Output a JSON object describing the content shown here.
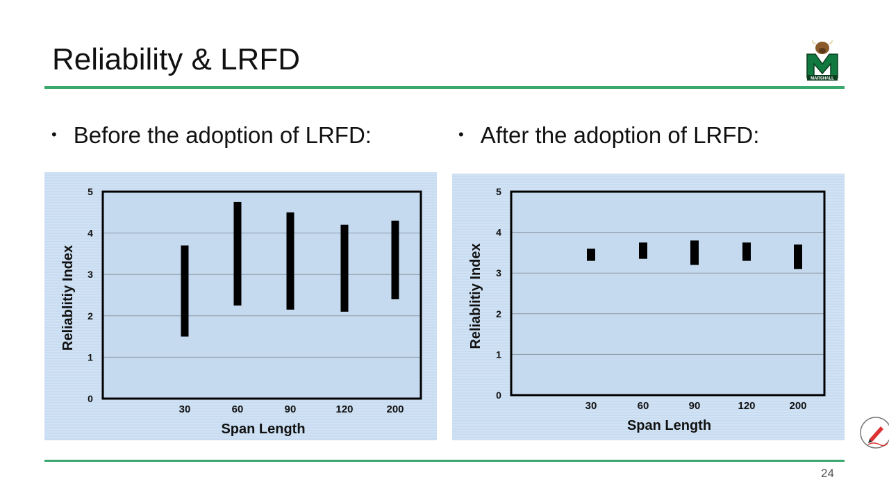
{
  "slide": {
    "title": "Reliability & LRFD",
    "page_number": "24",
    "logo_text": "MARSHALL",
    "accent_color": "#3aa76d"
  },
  "bullets": [
    {
      "text": "Before the adoption of LRFD:"
    },
    {
      "text": "After the adoption of LRFD:"
    }
  ],
  "chart_data": [
    {
      "type": "bar",
      "title": "",
      "xlabel": "Span Length",
      "ylabel": "Reliablitiy Index",
      "ylim": [
        0,
        5
      ],
      "yticks": [
        "0",
        "1",
        "2",
        "3",
        "4",
        "5"
      ],
      "grid": true,
      "categories": [
        "30",
        "60",
        "90",
        "120",
        "200"
      ],
      "ranges": [
        [
          1.5,
          3.7
        ],
        [
          2.25,
          4.75
        ],
        [
          2.15,
          4.5
        ],
        [
          2.1,
          4.2
        ],
        [
          2.4,
          4.3
        ]
      ]
    },
    {
      "type": "bar",
      "title": "",
      "xlabel": "Span Length",
      "ylabel": "Reliablitiy Index",
      "ylim": [
        0,
        5
      ],
      "yticks": [
        "0",
        "1",
        "2",
        "3",
        "4",
        "5"
      ],
      "grid": true,
      "categories": [
        "30",
        "60",
        "90",
        "120",
        "200"
      ],
      "ranges": [
        [
          3.3,
          3.6
        ],
        [
          3.35,
          3.75
        ],
        [
          3.2,
          3.8
        ],
        [
          3.3,
          3.75
        ],
        [
          3.1,
          3.7
        ]
      ]
    }
  ]
}
